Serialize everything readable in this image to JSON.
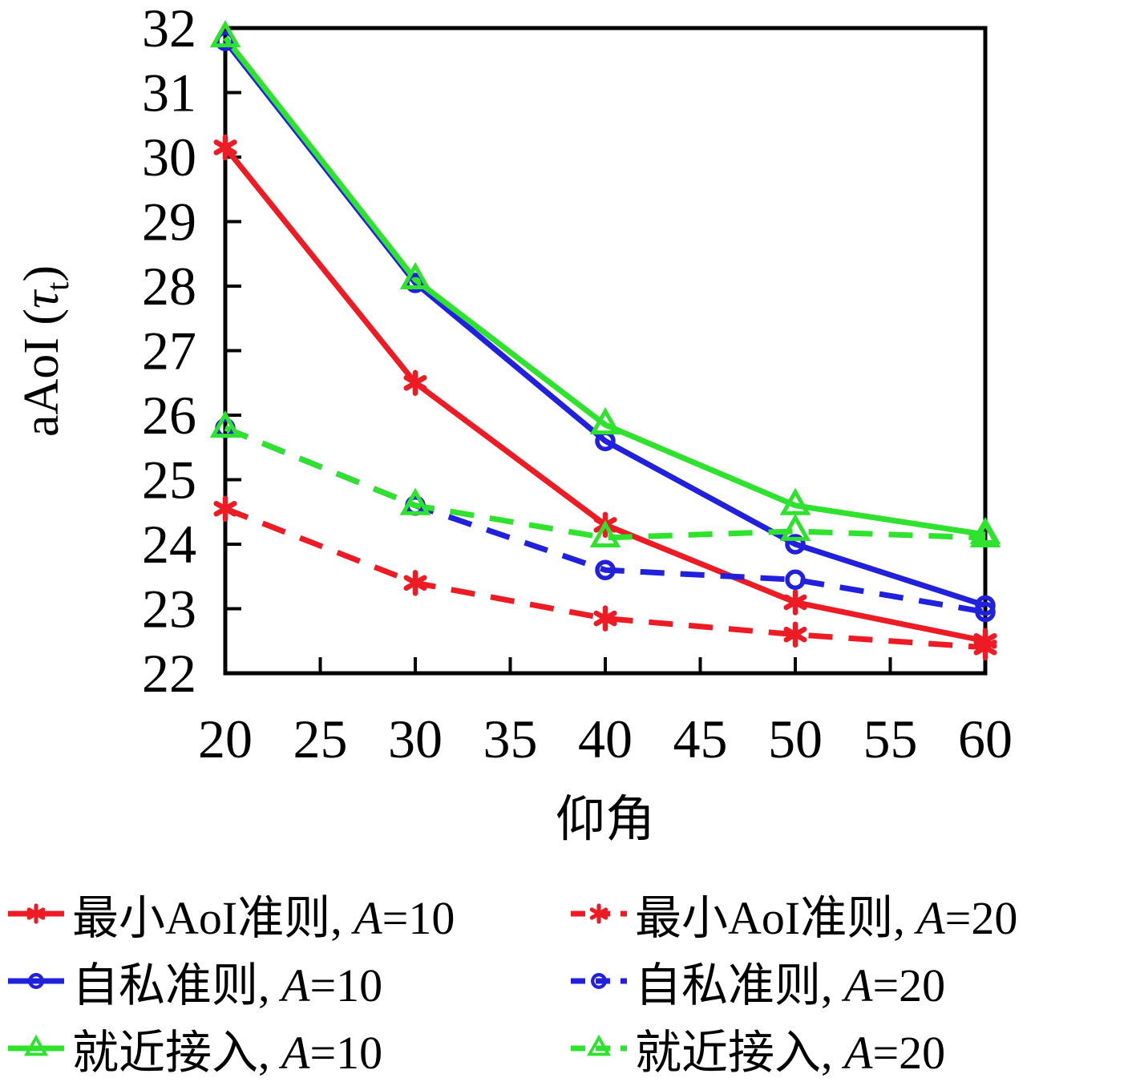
{
  "chart_data": {
    "type": "line",
    "title": "",
    "xlabel": "仰角",
    "ylabel": {
      "prefix": "aAoI (",
      "symbol": "τ",
      "subscript": "t",
      "suffix": ")"
    },
    "ylabel_text": "aAoI (τt)",
    "xlim": [
      20,
      60
    ],
    "ylim": [
      22,
      32
    ],
    "xticks": [
      20,
      25,
      30,
      35,
      40,
      45,
      50,
      55,
      60
    ],
    "yticks": [
      22,
      23,
      24,
      25,
      26,
      27,
      28,
      29,
      30,
      31,
      32
    ],
    "grid": false,
    "legend_position": "below-two-columns",
    "x": [
      20,
      30,
      40,
      50,
      60
    ],
    "series": [
      {
        "name": "最小AoI准则, A=10",
        "label_prefix": "最小AoI准则, ",
        "label_var": "A",
        "label_suffix": "=10",
        "color": "#ed1c24",
        "style": "solid",
        "marker": "asterisk",
        "values": [
          30.15,
          26.5,
          24.3,
          23.1,
          22.5
        ]
      },
      {
        "name": "最小AoI准则, A=20",
        "label_prefix": "最小AoI准则, ",
        "label_var": "A",
        "label_suffix": "=20",
        "color": "#ed1c24",
        "style": "dashed",
        "marker": "asterisk",
        "values": [
          24.55,
          23.4,
          22.85,
          22.6,
          22.4
        ]
      },
      {
        "name": "自私准则, A=10",
        "label_prefix": "自私准则, ",
        "label_var": "A",
        "label_suffix": "=10",
        "color": "#2020dd",
        "style": "solid",
        "marker": "circle",
        "values": [
          31.8,
          28.05,
          25.6,
          24.0,
          23.05
        ]
      },
      {
        "name": "自私准则, A=20",
        "label_prefix": "自私准则, ",
        "label_var": "A",
        "label_suffix": "=20",
        "color": "#2020dd",
        "style": "dashed",
        "marker": "circle",
        "values": [
          25.8,
          24.6,
          23.6,
          23.45,
          22.95
        ]
      },
      {
        "name": "就近接入, A=10",
        "label_prefix": "就近接入, ",
        "label_var": "A",
        "label_suffix": "=10",
        "color": "#2ee22e",
        "style": "solid",
        "marker": "triangle",
        "values": [
          31.85,
          28.1,
          25.85,
          24.6,
          24.15
        ]
      },
      {
        "name": "就近接入, A=20",
        "label_prefix": "就近接入, ",
        "label_var": "A",
        "label_suffix": "=20",
        "color": "#2ee22e",
        "style": "dashed",
        "marker": "triangle",
        "values": [
          25.8,
          24.6,
          24.1,
          24.2,
          24.1
        ]
      }
    ],
    "colors": {
      "axis": "#000000",
      "background": "#ffffff",
      "red": "#ed1c24",
      "blue": "#2020dd",
      "green": "#2ee22e"
    }
  }
}
